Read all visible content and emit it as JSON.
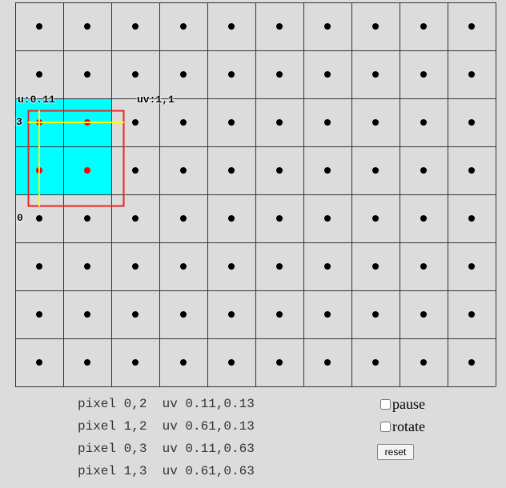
{
  "canvas": {
    "columns": 10,
    "rows": 8,
    "colors": {
      "background": "#dcdcdc",
      "grid_line": "#333333",
      "dot": "#000000",
      "highlight_fill": "#00ffff",
      "highlight_dot": "#ff0000",
      "sample_rect": "#ee2222",
      "crosshair": "#ffff00"
    },
    "highlighted_pixels": [
      [
        0,
        2
      ],
      [
        1,
        2
      ],
      [
        0,
        3
      ],
      [
        1,
        3
      ]
    ],
    "labels": {
      "u_label": "u:0.11",
      "uv_label": "uv:1,1",
      "top_label": "3",
      "bottom_label": "0"
    }
  },
  "info_lines": [
    "pixel 0,2  uv 0.11,0.13",
    "pixel 1,2  uv 0.61,0.13",
    "pixel 0,3  uv 0.11,0.63",
    "pixel 1,3  uv 0.61,0.63"
  ],
  "controls": {
    "pause_label": "pause",
    "pause_checked": false,
    "rotate_label": "rotate",
    "rotate_checked": false,
    "reset_label": "reset"
  }
}
